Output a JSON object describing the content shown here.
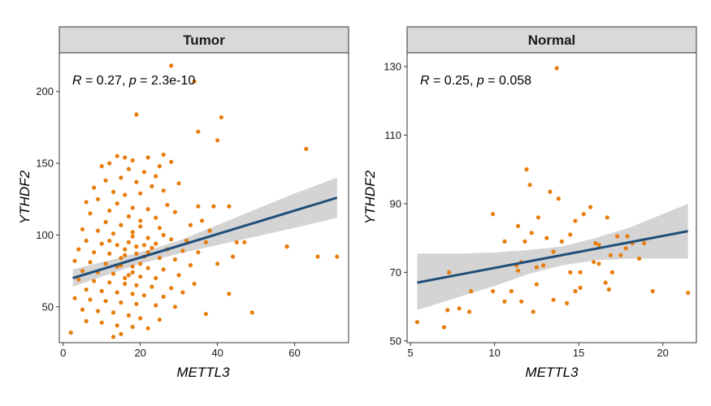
{
  "colors": {
    "point": "#E87D0D",
    "line": "#1F4E79",
    "band": "#CCCCCC",
    "strip": "#D9D9D9",
    "frame": "#333333"
  },
  "chart_data": [
    {
      "type": "scatter",
      "panel": "Tumor",
      "xlabel": "METTL3",
      "ylabel": "YTHDF2",
      "xlim": [
        -1,
        74
      ],
      "ylim": [
        25,
        227
      ],
      "xticks": [
        0,
        20,
        40,
        60
      ],
      "yticks": [
        50,
        100,
        150,
        200
      ],
      "stat": {
        "r_label": "R",
        "r_value": " = 0.27, ",
        "p_label": "p",
        "p_value": " = 2.3e-10"
      },
      "fit": {
        "x": [
          2.5,
          71
        ],
        "y": [
          70,
          126
        ]
      },
      "band": {
        "x": [
          2.5,
          10,
          20,
          30,
          40,
          50,
          60,
          71
        ],
        "upper": [
          76,
          81,
          88,
          96,
          107,
          118,
          129,
          140
        ],
        "lower": [
          64,
          71,
          80,
          87,
          93,
          99,
          105,
          112
        ]
      },
      "points": [
        [
          28,
          218
        ],
        [
          34,
          207
        ],
        [
          19,
          184
        ],
        [
          41,
          182
        ],
        [
          35,
          172
        ],
        [
          40,
          166
        ],
        [
          63,
          160
        ],
        [
          14,
          155
        ],
        [
          16,
          154
        ],
        [
          22,
          154
        ],
        [
          26,
          156
        ],
        [
          28,
          151
        ],
        [
          25,
          148
        ],
        [
          18,
          152
        ],
        [
          12,
          150
        ],
        [
          10,
          148
        ],
        [
          21,
          144
        ],
        [
          24,
          141
        ],
        [
          17,
          146
        ],
        [
          15,
          140
        ],
        [
          19,
          137
        ],
        [
          23,
          134
        ],
        [
          30,
          136
        ],
        [
          11,
          138
        ],
        [
          8,
          133
        ],
        [
          13,
          130
        ],
        [
          20,
          129
        ],
        [
          26,
          131
        ],
        [
          16,
          128
        ],
        [
          9,
          125
        ],
        [
          6,
          123
        ],
        [
          14,
          122
        ],
        [
          18,
          119
        ],
        [
          22,
          118
        ],
        [
          27,
          121
        ],
        [
          35,
          120
        ],
        [
          12,
          117
        ],
        [
          7,
          115
        ],
        [
          17,
          113
        ],
        [
          24,
          112
        ],
        [
          29,
          116
        ],
        [
          43,
          120
        ],
        [
          36,
          110
        ],
        [
          11,
          109
        ],
        [
          15,
          107
        ],
        [
          20,
          106
        ],
        [
          25,
          105
        ],
        [
          5,
          104
        ],
        [
          9,
          103
        ],
        [
          13,
          101
        ],
        [
          18,
          99
        ],
        [
          22,
          98
        ],
        [
          28,
          97
        ],
        [
          32,
          96
        ],
        [
          38,
          103
        ],
        [
          45,
          95
        ],
        [
          6,
          96
        ],
        [
          10,
          94
        ],
        [
          14,
          93
        ],
        [
          19,
          92
        ],
        [
          23,
          91
        ],
        [
          27,
          90
        ],
        [
          31,
          89
        ],
        [
          35,
          88
        ],
        [
          4,
          90
        ],
        [
          8,
          88
        ],
        [
          12,
          87
        ],
        [
          16,
          86
        ],
        [
          21,
          85
        ],
        [
          25,
          84
        ],
        [
          29,
          83
        ],
        [
          44,
          85
        ],
        [
          3,
          82
        ],
        [
          7,
          81
        ],
        [
          11,
          80
        ],
        [
          15,
          79
        ],
        [
          18,
          78
        ],
        [
          22,
          77
        ],
        [
          26,
          76
        ],
        [
          33,
          79
        ],
        [
          5,
          75
        ],
        [
          9,
          74
        ],
        [
          13,
          73
        ],
        [
          17,
          72
        ],
        [
          20,
          71
        ],
        [
          24,
          70
        ],
        [
          30,
          72
        ],
        [
          40,
          80
        ],
        [
          4,
          69
        ],
        [
          8,
          68
        ],
        [
          12,
          67
        ],
        [
          16,
          66
        ],
        [
          19,
          65
        ],
        [
          23,
          64
        ],
        [
          28,
          63
        ],
        [
          34,
          66
        ],
        [
          6,
          62
        ],
        [
          10,
          61
        ],
        [
          14,
          60
        ],
        [
          18,
          59
        ],
        [
          21,
          58
        ],
        [
          26,
          57
        ],
        [
          31,
          60
        ],
        [
          43,
          59
        ],
        [
          3,
          56
        ],
        [
          7,
          55
        ],
        [
          11,
          54
        ],
        [
          15,
          53
        ],
        [
          19,
          52
        ],
        [
          24,
          51
        ],
        [
          29,
          50
        ],
        [
          37,
          45
        ],
        [
          5,
          48
        ],
        [
          9,
          47
        ],
        [
          13,
          46
        ],
        [
          17,
          44
        ],
        [
          20,
          42
        ],
        [
          25,
          41
        ],
        [
          49,
          46
        ],
        [
          58,
          92
        ],
        [
          6,
          40
        ],
        [
          10,
          39
        ],
        [
          14,
          37
        ],
        [
          18,
          36
        ],
        [
          22,
          35
        ],
        [
          2,
          32
        ],
        [
          13,
          29
        ],
        [
          15,
          31
        ],
        [
          66,
          85
        ],
        [
          71,
          85
        ],
        [
          58,
          92
        ],
        [
          47,
          95
        ],
        [
          33,
          107
        ],
        [
          39,
          120
        ],
        [
          37,
          95
        ],
        [
          16,
          90
        ],
        [
          17,
          95
        ],
        [
          18,
          102
        ],
        [
          19,
          87
        ],
        [
          20,
          110
        ],
        [
          21,
          93
        ],
        [
          15,
          84
        ],
        [
          14,
          78
        ],
        [
          16,
          70
        ],
        [
          18,
          74
        ],
        [
          20,
          80
        ],
        [
          22,
          88
        ],
        [
          24,
          94
        ],
        [
          26,
          100
        ],
        [
          12,
          96
        ]
      ]
    },
    {
      "type": "scatter",
      "panel": "Normal",
      "xlabel": "METTL3",
      "ylabel": "YTHDF2",
      "xlim": [
        4.8,
        22
      ],
      "ylim": [
        49.5,
        134
      ],
      "xticks": [
        5,
        10,
        15,
        20
      ],
      "yticks": [
        50,
        70,
        90,
        110,
        130
      ],
      "stat": {
        "r_label": "R",
        "r_value": " = 0.25, ",
        "p_label": "p",
        "p_value": " = 0.058"
      },
      "fit": {
        "x": [
          5.4,
          21.5
        ],
        "y": [
          67,
          82
        ]
      },
      "band": {
        "x": [
          5.4,
          8,
          10,
          12,
          14,
          16,
          18,
          21.5
        ],
        "upper": [
          75.5,
          75.5,
          75.8,
          76.5,
          77.5,
          80,
          83,
          90
        ],
        "lower": [
          59,
          63,
          66,
          69.5,
          72,
          73.5,
          74,
          74
        ]
      },
      "points": [
        [
          13.7,
          129.5
        ],
        [
          11.9,
          100
        ],
        [
          12.1,
          95.5
        ],
        [
          13.3,
          93.5
        ],
        [
          13.8,
          91.5
        ],
        [
          9.9,
          87
        ],
        [
          11.4,
          83.5
        ],
        [
          12.6,
          86
        ],
        [
          15.3,
          87
        ],
        [
          14.8,
          85
        ],
        [
          16.7,
          86
        ],
        [
          15.7,
          89
        ],
        [
          12.2,
          81.5
        ],
        [
          13.1,
          80
        ],
        [
          14.5,
          81
        ],
        [
          17.3,
          80.5
        ],
        [
          17.9,
          80.5
        ],
        [
          18.2,
          78.5
        ],
        [
          18.9,
          78.5
        ],
        [
          16.2,
          78
        ],
        [
          16.0,
          78.5
        ],
        [
          10.6,
          79
        ],
        [
          11.8,
          79
        ],
        [
          14.0,
          79
        ],
        [
          13.5,
          76
        ],
        [
          17.8,
          77
        ],
        [
          16.9,
          75
        ],
        [
          17.5,
          75
        ],
        [
          18.6,
          74
        ],
        [
          15.9,
          73
        ],
        [
          12.9,
          72
        ],
        [
          11.4,
          70.5
        ],
        [
          11.3,
          72
        ],
        [
          11.6,
          73
        ],
        [
          12.5,
          71.5
        ],
        [
          14.5,
          70
        ],
        [
          15.1,
          70
        ],
        [
          16.2,
          72.5
        ],
        [
          16.6,
          67
        ],
        [
          16.8,
          65
        ],
        [
          17.0,
          70
        ],
        [
          15.1,
          65.5
        ],
        [
          14.8,
          64.5
        ],
        [
          14.3,
          61
        ],
        [
          13.5,
          62
        ],
        [
          12.5,
          66.5
        ],
        [
          11.0,
          64.5
        ],
        [
          11.6,
          61.5
        ],
        [
          12.3,
          58.5
        ],
        [
          10.6,
          61.5
        ],
        [
          9.9,
          64.5
        ],
        [
          8.6,
          64.5
        ],
        [
          7.9,
          59.5
        ],
        [
          8.5,
          58.5
        ],
        [
          7.2,
          59
        ],
        [
          7.3,
          70
        ],
        [
          7.0,
          54
        ],
        [
          5.4,
          55.5
        ],
        [
          19.4,
          64.5
        ],
        [
          21.5,
          64
        ]
      ]
    }
  ]
}
